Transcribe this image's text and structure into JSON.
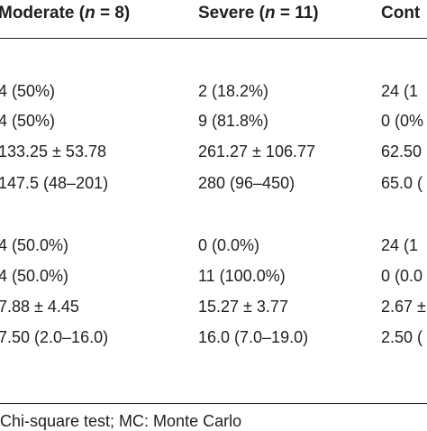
{
  "header": {
    "col1": {
      "label": "Moderate (",
      "n_symbol": "n",
      "n_value": " = 8)"
    },
    "col2": {
      "label": "Severe (",
      "n_symbol": "n",
      "n_value": " = 11)"
    },
    "col3": {
      "label": "Cont"
    }
  },
  "rows": [
    {
      "c1": "4 (50%)",
      "c2": "2 (18.2%)",
      "c3": "24 (1"
    },
    {
      "c1": "4 (50%)",
      "c2": "9 (81.8%)",
      "c3": "0 (0%"
    },
    {
      "c1": "133.25 ± 53.78",
      "c2": "261.27 ± 106.77",
      "c3": "62.50"
    },
    {
      "c1": "147.5 (48–201)",
      "c2": "280 (96–450)",
      "c3": "65.0 ("
    },
    {
      "c1": "4 (50.0%)",
      "c2": "0 (0.0%)",
      "c3": "24 (1"
    },
    {
      "c1": "4 (50.0%)",
      "c2": "11 (100.0%)",
      "c3": "0 (0.0"
    },
    {
      "c1": "7.88 ± 4.45",
      "c2": "15.27 ± 3.77",
      "c3": "2.67 ±"
    },
    {
      "c1": "7.50 (2.0–16.0)",
      "c2": "16.0 (7.0–19.0)",
      "c3": "2.50 ("
    }
  ],
  "footnote": "Chi-square test; MC: Monte Carlo"
}
